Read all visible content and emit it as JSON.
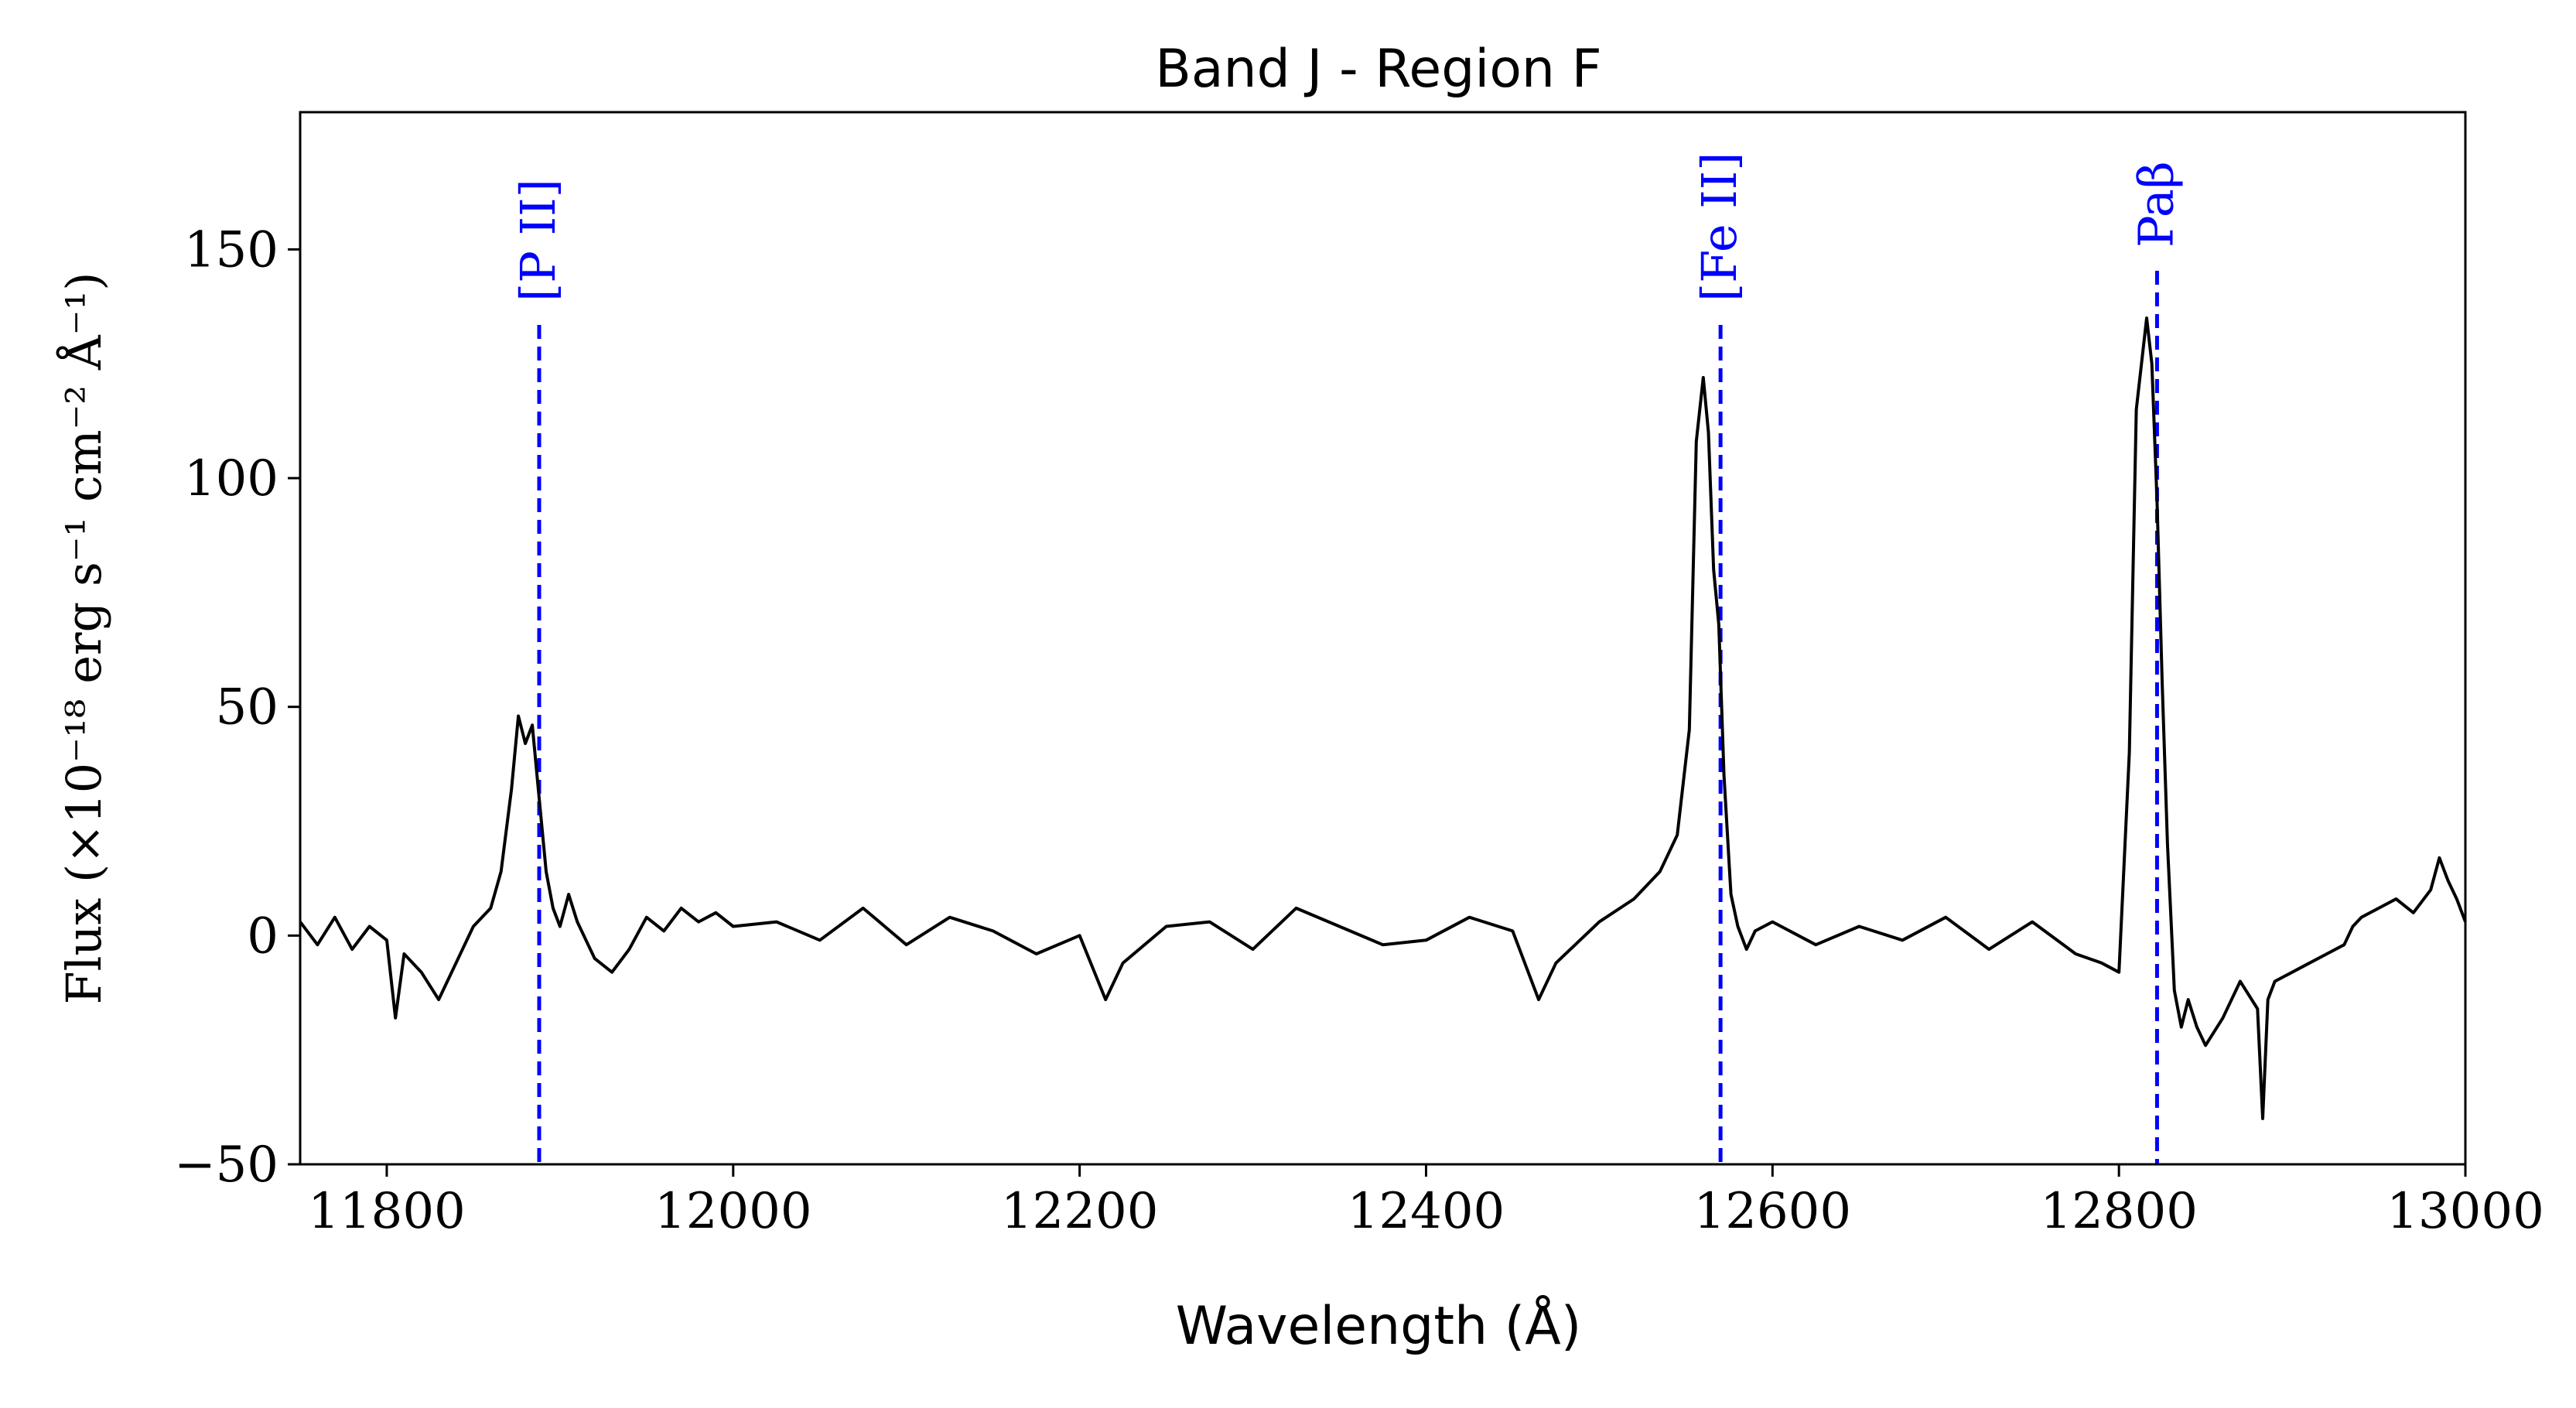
{
  "chart_data": {
    "type": "line",
    "title": "Band J - Region F",
    "xlabel": "Wavelength (Å)",
    "ylabel": "Flux (×10⁻¹⁸ erg s⁻¹ cm⁻² Å⁻¹)",
    "xlim": [
      11750,
      13000
    ],
    "ylim": [
      -50,
      180
    ],
    "xticks": [
      11800,
      12000,
      12200,
      12400,
      12600,
      12800,
      13000
    ],
    "yticks": [
      -50,
      0,
      50,
      100,
      150
    ],
    "x_tick_labels": [
      "11800",
      "12000",
      "12200",
      "12400",
      "12600",
      "12800",
      "13000"
    ],
    "y_tick_labels": [
      "−50",
      "0",
      "50",
      "100",
      "150"
    ],
    "grid": false,
    "series": [
      {
        "color": "#000000",
        "x": [
          11750,
          11760,
          11770,
          11780,
          11790,
          11800,
          11805,
          11810,
          11820,
          11830,
          11840,
          11850,
          11860,
          11866,
          11872,
          11876,
          11880,
          11884,
          11888,
          11892,
          11896,
          11900,
          11905,
          11910,
          11920,
          11930,
          11940,
          11950,
          11960,
          11970,
          11980,
          11990,
          12000,
          12025,
          12050,
          12075,
          12100,
          12125,
          12150,
          12175,
          12200,
          12215,
          12225,
          12250,
          12275,
          12300,
          12325,
          12350,
          12375,
          12400,
          12425,
          12450,
          12465,
          12475,
          12500,
          12520,
          12535,
          12545,
          12552,
          12556,
          12560,
          12563,
          12566,
          12569,
          12572,
          12576,
          12580,
          12585,
          12590,
          12600,
          12625,
          12650,
          12675,
          12700,
          12725,
          12750,
          12775,
          12790,
          12800,
          12806,
          12810,
          12813,
          12816,
          12819,
          12822,
          12825,
          12828,
          12832,
          12836,
          12840,
          12845,
          12850,
          12860,
          12870,
          12880,
          12883,
          12886,
          12890,
          12900,
          12910,
          12920,
          12930,
          12935,
          12940,
          12950,
          12960,
          12970,
          12980,
          12985,
          12990,
          12995,
          13000
        ],
        "y": [
          3,
          -2,
          4,
          -3,
          2,
          -1,
          -18,
          -4,
          -8,
          -14,
          -6,
          2,
          6,
          14,
          32,
          48,
          42,
          46,
          30,
          14,
          6,
          2,
          9,
          3,
          -5,
          -8,
          -3,
          4,
          1,
          6,
          3,
          5,
          2,
          3,
          -1,
          6,
          -2,
          4,
          1,
          -4,
          0,
          -14,
          -6,
          2,
          3,
          -3,
          6,
          2,
          -2,
          -1,
          4,
          1,
          -14,
          -6,
          3,
          8,
          14,
          22,
          45,
          108,
          122,
          110,
          80,
          68,
          35,
          9,
          2,
          -3,
          1,
          3,
          -2,
          2,
          -1,
          4,
          -3,
          3,
          -4,
          -6,
          -8,
          40,
          115,
          125,
          135,
          125,
          95,
          55,
          20,
          -12,
          -20,
          -14,
          -20,
          -24,
          -18,
          -10,
          -16,
          -40,
          -14,
          -10,
          -8,
          -6,
          -4,
          -2,
          2,
          4,
          6,
          8,
          5,
          10,
          17,
          12,
          8,
          3
        ]
      }
    ],
    "annotations": [
      {
        "label": "[P II]",
        "x": 11888,
        "color": "#0000ff"
      },
      {
        "label": "[Fe II]",
        "x": 12570,
        "color": "#0000ff"
      },
      {
        "label": "Paβ",
        "x": 12822,
        "color": "#0000ff"
      }
    ]
  }
}
